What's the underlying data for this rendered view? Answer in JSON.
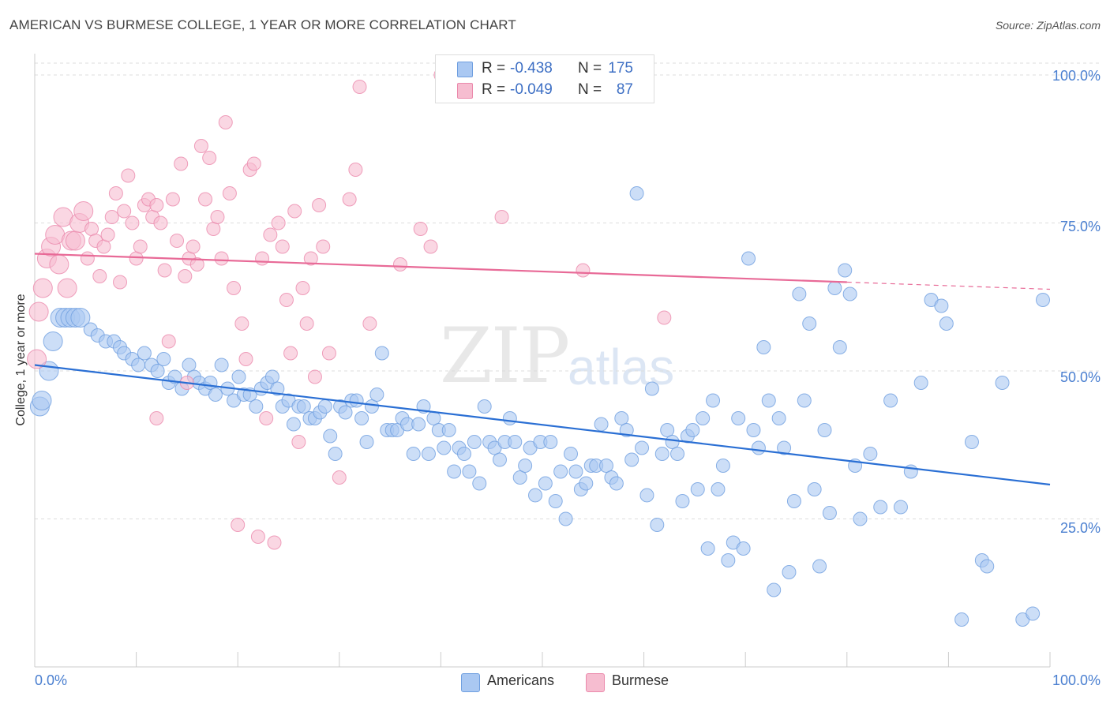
{
  "header": {
    "title": "AMERICAN VS BURMESE COLLEGE, 1 YEAR OR MORE CORRELATION CHART",
    "source": "Source: ZipAtlas.com"
  },
  "watermark": {
    "zip": "ZIP",
    "atlas": "atlas"
  },
  "legend": {
    "rows": [
      {
        "r_label": "R =",
        "r_value": "-0.438",
        "n_label": "N =",
        "n_value": "175",
        "color": "#aac8f2",
        "border": "#6f9fe0"
      },
      {
        "r_label": "R =",
        "r_value": "-0.049",
        "n_label": "N =",
        "n_value": "87",
        "color": "#f6bdd0",
        "border": "#eb8aac"
      }
    ]
  },
  "bottom_legend": {
    "americans": "Americans",
    "burmese": "Burmese"
  },
  "colors": {
    "americans_fill": "#aac8f2",
    "americans_stroke": "#6f9fe0",
    "americans_line": "#2a6fd4",
    "burmese_fill": "#f6bdd0",
    "burmese_stroke": "#eb8aac",
    "burmese_line": "#e86a97",
    "grid": "#dddddd",
    "tick_label": "#4a7fd0"
  },
  "chart_data": {
    "type": "scatter",
    "title": "AMERICAN VS BURMESE COLLEGE, 1 YEAR OR MORE CORRELATION CHART",
    "xlabel": "",
    "ylabel": "College, 1 year or more",
    "x_tick_labels": [
      "0.0%",
      "100.0%"
    ],
    "y_tick_labels": [
      "100.0%",
      "75.0%",
      "50.0%",
      "25.0%"
    ],
    "y_ticks": [
      100,
      75,
      50,
      25
    ],
    "xlim": [
      0,
      100
    ],
    "ylim": [
      0,
      102
    ],
    "grid": true,
    "legend_position": "top-center",
    "series": [
      {
        "name": "Americans",
        "r": -0.438,
        "n": 175,
        "trend": {
          "x": [
            0,
            100
          ],
          "y": [
            51.0,
            30.8
          ],
          "dashed_from": null
        },
        "points": [
          [
            0.5,
            44
          ],
          [
            0.7,
            45
          ],
          [
            1.4,
            50
          ],
          [
            1.8,
            55
          ],
          [
            2.5,
            59
          ],
          [
            3,
            59
          ],
          [
            3.5,
            59
          ],
          [
            4,
            59
          ],
          [
            4.5,
            59
          ],
          [
            5.5,
            57
          ],
          [
            6.2,
            56
          ],
          [
            7,
            55
          ],
          [
            7.8,
            55
          ],
          [
            8.4,
            54
          ],
          [
            8.8,
            53
          ],
          [
            9.6,
            52
          ],
          [
            10.2,
            51
          ],
          [
            10.8,
            53
          ],
          [
            11.5,
            51
          ],
          [
            12.1,
            50
          ],
          [
            12.7,
            52
          ],
          [
            13.2,
            48
          ],
          [
            13.8,
            49
          ],
          [
            14.5,
            47
          ],
          [
            15.2,
            51
          ],
          [
            15.7,
            49
          ],
          [
            16.2,
            48
          ],
          [
            16.8,
            47
          ],
          [
            17.3,
            48
          ],
          [
            17.8,
            46
          ],
          [
            18.4,
            51
          ],
          [
            19,
            47
          ],
          [
            19.6,
            45
          ],
          [
            20.1,
            49
          ],
          [
            20.6,
            46
          ],
          [
            21.2,
            46
          ],
          [
            21.8,
            44
          ],
          [
            22.3,
            47
          ],
          [
            22.9,
            48
          ],
          [
            23.4,
            49
          ],
          [
            23.9,
            47
          ],
          [
            24.4,
            44
          ],
          [
            25,
            45
          ],
          [
            25.5,
            41
          ],
          [
            26,
            44
          ],
          [
            26.5,
            44
          ],
          [
            27.1,
            42
          ],
          [
            27.6,
            42
          ],
          [
            28.1,
            43
          ],
          [
            28.6,
            44
          ],
          [
            29.1,
            39
          ],
          [
            29.6,
            36
          ],
          [
            30.1,
            44
          ],
          [
            30.6,
            43
          ],
          [
            31.2,
            45
          ],
          [
            31.7,
            45
          ],
          [
            32.2,
            42
          ],
          [
            32.7,
            38
          ],
          [
            33.2,
            44
          ],
          [
            33.7,
            46
          ],
          [
            34.2,
            53
          ],
          [
            34.7,
            40
          ],
          [
            35.2,
            40
          ],
          [
            35.7,
            40
          ],
          [
            36.2,
            42
          ],
          [
            36.7,
            41
          ],
          [
            37.3,
            36
          ],
          [
            37.8,
            41
          ],
          [
            38.3,
            44
          ],
          [
            38.8,
            36
          ],
          [
            39.3,
            42
          ],
          [
            39.8,
            40
          ],
          [
            40.3,
            37
          ],
          [
            40.8,
            40
          ],
          [
            41.3,
            33
          ],
          [
            41.8,
            37
          ],
          [
            42.3,
            36
          ],
          [
            42.8,
            33
          ],
          [
            43.3,
            38
          ],
          [
            43.8,
            31
          ],
          [
            44.3,
            44
          ],
          [
            44.8,
            38
          ],
          [
            45.3,
            37
          ],
          [
            45.8,
            35
          ],
          [
            46.3,
            38
          ],
          [
            46.8,
            42
          ],
          [
            47.3,
            38
          ],
          [
            47.8,
            32
          ],
          [
            48.3,
            34
          ],
          [
            48.8,
            37
          ],
          [
            49.3,
            29
          ],
          [
            49.8,
            38
          ],
          [
            50.3,
            31
          ],
          [
            50.8,
            38
          ],
          [
            51.3,
            28
          ],
          [
            51.8,
            33
          ],
          [
            52.3,
            25
          ],
          [
            52.8,
            36
          ],
          [
            53.3,
            33
          ],
          [
            53.8,
            30
          ],
          [
            54.3,
            31
          ],
          [
            54.8,
            34
          ],
          [
            55.3,
            34
          ],
          [
            55.8,
            41
          ],
          [
            56.3,
            34
          ],
          [
            56.8,
            32
          ],
          [
            57.3,
            31
          ],
          [
            57.8,
            42
          ],
          [
            58.3,
            40
          ],
          [
            58.8,
            35
          ],
          [
            59.3,
            80
          ],
          [
            59.8,
            37
          ],
          [
            60.3,
            29
          ],
          [
            60.8,
            47
          ],
          [
            61.3,
            24
          ],
          [
            61.8,
            36
          ],
          [
            62.3,
            40
          ],
          [
            62.8,
            38
          ],
          [
            63.3,
            36
          ],
          [
            63.8,
            28
          ],
          [
            64.3,
            39
          ],
          [
            64.8,
            40
          ],
          [
            65.3,
            30
          ],
          [
            65.8,
            42
          ],
          [
            66.3,
            20
          ],
          [
            66.8,
            45
          ],
          [
            67.3,
            30
          ],
          [
            67.8,
            34
          ],
          [
            68.3,
            18
          ],
          [
            68.8,
            21
          ],
          [
            69.3,
            42
          ],
          [
            69.8,
            20
          ],
          [
            70.3,
            69
          ],
          [
            70.8,
            40
          ],
          [
            71.3,
            37
          ],
          [
            71.8,
            54
          ],
          [
            72.3,
            45
          ],
          [
            72.8,
            13
          ],
          [
            73.3,
            42
          ],
          [
            73.8,
            37
          ],
          [
            74.3,
            16
          ],
          [
            74.8,
            28
          ],
          [
            75.3,
            63
          ],
          [
            75.8,
            45
          ],
          [
            76.3,
            58
          ],
          [
            76.8,
            30
          ],
          [
            77.3,
            17
          ],
          [
            77.8,
            40
          ],
          [
            78.3,
            26
          ],
          [
            78.8,
            64
          ],
          [
            79.3,
            54
          ],
          [
            79.8,
            67
          ],
          [
            80.3,
            63
          ],
          [
            80.8,
            34
          ],
          [
            81.3,
            25
          ],
          [
            82.3,
            36
          ],
          [
            83.3,
            27
          ],
          [
            84.3,
            45
          ],
          [
            85.3,
            27
          ],
          [
            86.3,
            33
          ],
          [
            87.3,
            48
          ],
          [
            88.3,
            62
          ],
          [
            89.3,
            61
          ],
          [
            89.8,
            58
          ],
          [
            91.3,
            8
          ],
          [
            92.3,
            38
          ],
          [
            93.3,
            18
          ],
          [
            93.8,
            17
          ],
          [
            95.3,
            48
          ],
          [
            97.3,
            8
          ],
          [
            98.3,
            9
          ],
          [
            99.3,
            62
          ]
        ]
      },
      {
        "name": "Burmese",
        "r": -0.049,
        "n": 87,
        "trend": {
          "x": [
            0,
            100
          ],
          "y": [
            69.8,
            63.8
          ],
          "dashed_from": 80
        },
        "points": [
          [
            0.2,
            52
          ],
          [
            0.4,
            60
          ],
          [
            0.8,
            64
          ],
          [
            1.2,
            69
          ],
          [
            1.6,
            71
          ],
          [
            2,
            73
          ],
          [
            2.4,
            68
          ],
          [
            2.8,
            76
          ],
          [
            3.2,
            64
          ],
          [
            3.6,
            72
          ],
          [
            4,
            72
          ],
          [
            4.4,
            75
          ],
          [
            4.8,
            77
          ],
          [
            5.2,
            69
          ],
          [
            5.6,
            74
          ],
          [
            6,
            72
          ],
          [
            6.4,
            66
          ],
          [
            6.8,
            71
          ],
          [
            7.2,
            73
          ],
          [
            7.6,
            76
          ],
          [
            8,
            80
          ],
          [
            8.4,
            65
          ],
          [
            8.8,
            77
          ],
          [
            9.2,
            83
          ],
          [
            9.6,
            75
          ],
          [
            10,
            69
          ],
          [
            10.4,
            71
          ],
          [
            10.8,
            78
          ],
          [
            11.2,
            79
          ],
          [
            11.6,
            76
          ],
          [
            12,
            78
          ],
          [
            12.4,
            75
          ],
          [
            12.8,
            67
          ],
          [
            13.2,
            55
          ],
          [
            13.6,
            79
          ],
          [
            14,
            72
          ],
          [
            14.4,
            85
          ],
          [
            14.8,
            66
          ],
          [
            15.2,
            69
          ],
          [
            15.6,
            71
          ],
          [
            16,
            68
          ],
          [
            16.4,
            88
          ],
          [
            16.8,
            79
          ],
          [
            17.2,
            86
          ],
          [
            17.6,
            74
          ],
          [
            18,
            76
          ],
          [
            18.4,
            69
          ],
          [
            18.8,
            92
          ],
          [
            19.2,
            80
          ],
          [
            19.6,
            64
          ],
          [
            20,
            24
          ],
          [
            20.4,
            58
          ],
          [
            20.8,
            52
          ],
          [
            21.2,
            84
          ],
          [
            21.6,
            85
          ],
          [
            22,
            22
          ],
          [
            22.4,
            69
          ],
          [
            22.8,
            42
          ],
          [
            23.2,
            73
          ],
          [
            23.6,
            21
          ],
          [
            24,
            75
          ],
          [
            24.4,
            71
          ],
          [
            24.8,
            62
          ],
          [
            25.2,
            53
          ],
          [
            25.6,
            77
          ],
          [
            26,
            38
          ],
          [
            26.4,
            64
          ],
          [
            26.8,
            58
          ],
          [
            27.2,
            69
          ],
          [
            27.6,
            49
          ],
          [
            28,
            78
          ],
          [
            28.4,
            71
          ],
          [
            29,
            53
          ],
          [
            30,
            32
          ],
          [
            31,
            79
          ],
          [
            31.6,
            84
          ],
          [
            32,
            98
          ],
          [
            33,
            58
          ],
          [
            36,
            68
          ],
          [
            38,
            74
          ],
          [
            39,
            71
          ],
          [
            40,
            100
          ],
          [
            46,
            76
          ],
          [
            54,
            67
          ],
          [
            62,
            59
          ],
          [
            12,
            42
          ],
          [
            15,
            48
          ]
        ]
      }
    ]
  }
}
